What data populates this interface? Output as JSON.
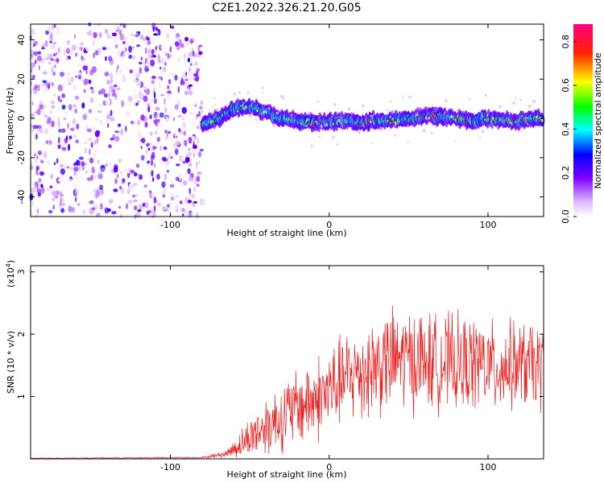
{
  "figure": {
    "title": "C2E1.2022.326.21.20.G05"
  },
  "chart_data": [
    {
      "type": "heatmap",
      "xlabel": "Height of straight line (km)",
      "ylabel": "Frequency (Hz)",
      "xlim": [
        -188,
        135
      ],
      "ylim": [
        -50,
        48
      ],
      "xticks": [
        -100,
        0,
        100
      ],
      "yticks": [
        -40,
        -20,
        0,
        20,
        40
      ],
      "colorbar": {
        "label": "Normalized spectral amplitude",
        "range": [
          0.0,
          0.88
        ],
        "ticks": [
          0.0,
          0.2,
          0.4,
          0.6,
          0.8
        ],
        "colormap": [
          "#ffffff",
          "#8000ff",
          "#0000ff",
          "#00ffff",
          "#00ff00",
          "#ffff00",
          "#ff0000",
          "#ff0080"
        ]
      },
      "noise_region": {
        "x": [
          -188,
          -80
        ],
        "y": [
          -50,
          48
        ],
        "level": 0.15
      },
      "signal_trace": {
        "x": [
          -80,
          -70,
          -60,
          -50,
          -40,
          -30,
          -20,
          -10,
          0,
          10,
          20,
          30,
          40,
          50,
          60,
          70,
          80,
          90,
          100,
          110,
          120,
          130,
          135
        ],
        "y": [
          -3,
          0,
          5,
          6,
          3,
          0,
          -1,
          -2,
          -2,
          -1,
          -2,
          -1,
          -1,
          0,
          1,
          1,
          0,
          -1,
          0,
          -1,
          -1,
          0,
          0
        ],
        "peak_amplitude": 0.85
      }
    },
    {
      "type": "line",
      "xlabel": "Height of straight line (km)",
      "ylabel": "SNR (10 * v/v)",
      "scale_label": "(x10",
      "scale_exponent": "4",
      "xlim": [
        -188,
        135
      ],
      "ylim": [
        0,
        3.1
      ],
      "xticks": [
        -100,
        0,
        100
      ],
      "yticks": [
        1,
        2,
        3
      ],
      "color": "#ee2222",
      "envelope": {
        "x": [
          -188,
          -80,
          -65,
          -55,
          -45,
          -35,
          -25,
          -15,
          -5,
          5,
          15,
          25,
          35,
          45,
          55,
          65,
          75,
          85,
          95,
          105,
          115,
          125,
          135
        ],
        "mean": [
          0.01,
          0.02,
          0.08,
          0.25,
          0.45,
          0.6,
          0.75,
          0.9,
          1.0,
          1.2,
          1.35,
          1.45,
          1.55,
          1.6,
          1.6,
          1.55,
          1.55,
          1.5,
          1.55,
          1.45,
          1.5,
          1.5,
          1.45
        ],
        "amplitude": [
          0.005,
          0.01,
          0.05,
          0.2,
          0.35,
          0.45,
          0.5,
          0.55,
          0.6,
          0.6,
          0.65,
          0.7,
          0.7,
          0.7,
          0.7,
          0.65,
          0.65,
          0.65,
          0.65,
          0.6,
          0.6,
          0.6,
          0.6
        ]
      }
    }
  ]
}
